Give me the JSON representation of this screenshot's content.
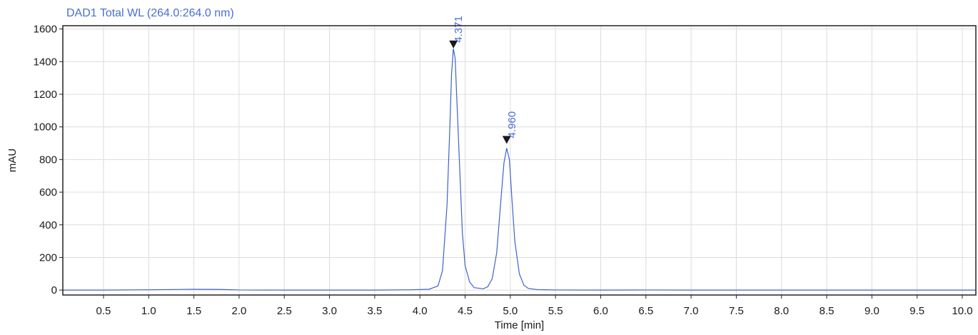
{
  "chart_data": {
    "type": "line",
    "title": "DAD1 Total WL (264.0:264.0 nm)",
    "xlabel": "Time [min]",
    "ylabel": "mAU",
    "xlim": [
      0.05,
      10.15
    ],
    "ylim": [
      -30,
      1620
    ],
    "x_ticks": [
      0.5,
      1.0,
      1.5,
      2.0,
      2.5,
      3.0,
      3.5,
      4.0,
      4.5,
      5.0,
      5.5,
      6.0,
      6.5,
      7.0,
      7.5,
      8.0,
      8.5,
      9.0,
      9.5,
      10.0
    ],
    "x_tick_labels": [
      "0.5",
      "1.0",
      "1.5",
      "2.0",
      "2.5",
      "3.0",
      "3.5",
      "4.0",
      "4.5",
      "5.0",
      "5.5",
      "6.0",
      "6.5",
      "7.0",
      "7.5",
      "8.0",
      "8.5",
      "9.0",
      "9.5",
      "10.0"
    ],
    "y_ticks": [
      0,
      200,
      400,
      600,
      800,
      1000,
      1200,
      1400,
      1600
    ],
    "y_tick_labels": [
      "0",
      "200",
      "400",
      "600",
      "800",
      "1000",
      "1200",
      "1400",
      "1600"
    ],
    "grid": true,
    "series": [
      {
        "color": "#3f63c9",
        "x": [
          0.05,
          0.5,
          1.0,
          1.5,
          1.8,
          2.0,
          2.5,
          3.0,
          3.5,
          3.9,
          4.1,
          4.2,
          4.25,
          4.3,
          4.33,
          4.35,
          4.37,
          4.39,
          4.41,
          4.44,
          4.47,
          4.5,
          4.55,
          4.6,
          4.7,
          4.75,
          4.8,
          4.85,
          4.9,
          4.93,
          4.96,
          4.99,
          5.02,
          5.05,
          5.1,
          5.15,
          5.2,
          5.3,
          5.5,
          6.0,
          6.5,
          7.0,
          8.0,
          9.0,
          10.0,
          10.15
        ],
        "y": [
          0,
          0,
          2,
          5,
          4,
          1,
          0,
          0,
          0,
          2,
          5,
          25,
          120,
          520,
          980,
          1320,
          1480,
          1420,
          1150,
          750,
          350,
          150,
          50,
          15,
          8,
          20,
          70,
          230,
          580,
          780,
          870,
          800,
          540,
          300,
          100,
          30,
          10,
          3,
          1,
          0,
          1,
          0,
          0,
          0,
          0,
          0
        ]
      }
    ],
    "peaks": [
      {
        "rt": 4.371,
        "height": 1490,
        "label": "4.371"
      },
      {
        "rt": 4.96,
        "height": 905,
        "label": "4.960"
      }
    ]
  }
}
